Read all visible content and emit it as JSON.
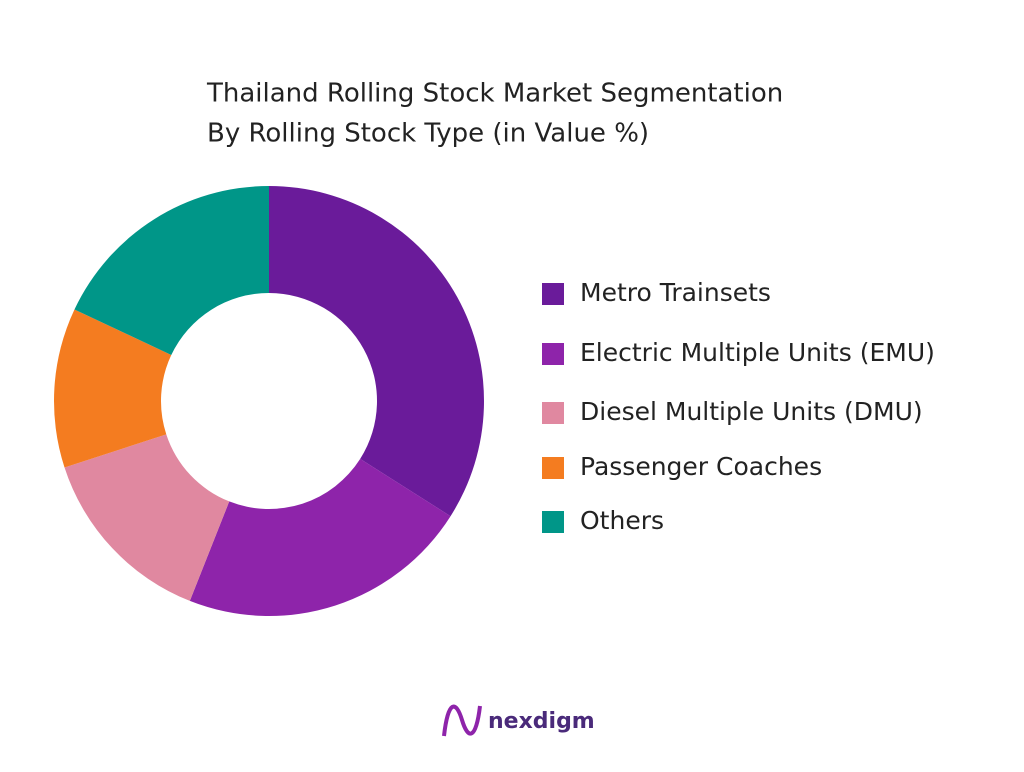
{
  "chart_data": {
    "type": "donut",
    "title": "Thailand Rolling Stock Market Segmentation",
    "subtitle": "By Rolling Stock Type (in Value %)",
    "categories": [
      "Metro Trainsets",
      "Electric Multiple Units (EMU)",
      "Diesel Multiple Units (DMU)",
      "Passenger Coaches",
      "Others"
    ],
    "values": [
      34,
      22,
      14,
      12,
      18
    ],
    "colors": [
      "#6a1b9a",
      "#8e24aa",
      "#e088a0",
      "#f47c20",
      "#009688"
    ],
    "legend": "right"
  },
  "logo": "nexdigm"
}
